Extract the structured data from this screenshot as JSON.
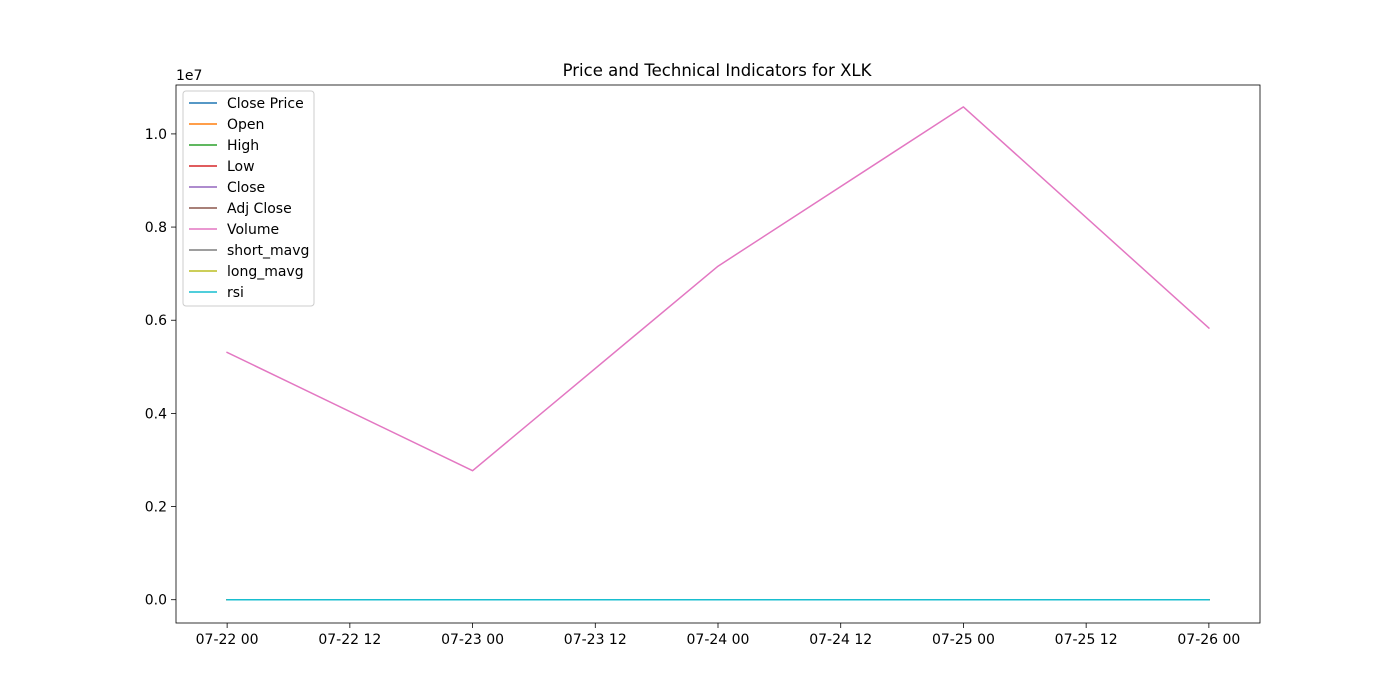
{
  "chart_data": {
    "type": "line",
    "title": "Price and Technical Indicators for XLK",
    "xlabel": "",
    "ylabel": "",
    "y_offset_label": "1e7",
    "x_ticks": [
      "07-22 00",
      "07-22 12",
      "07-23 00",
      "07-23 12",
      "07-24 00",
      "07-24 12",
      "07-25 00",
      "07-25 12",
      "07-26 00"
    ],
    "y_ticks": [
      "0.0",
      "0.2",
      "0.4",
      "0.6",
      "0.8",
      "1.0"
    ],
    "xlim": [
      "2024-07-21 19:00",
      "2024-07-26 05:00"
    ],
    "ylim": [
      -0.05,
      1.105
    ],
    "x": [
      "2024-07-22",
      "2024-07-23",
      "2024-07-24",
      "2024-07-25",
      "2024-07-26"
    ],
    "legend_position": "top-left",
    "grid": false,
    "series": [
      {
        "name": "Close Price",
        "color": "#1f77b4",
        "values": [
          0.0,
          0.0,
          0.0,
          0.0,
          0.0
        ]
      },
      {
        "name": "Open",
        "color": "#ff7f0e",
        "values": [
          0.0,
          0.0,
          0.0,
          0.0,
          0.0
        ]
      },
      {
        "name": "High",
        "color": "#2ca02c",
        "values": [
          0.0,
          0.0,
          0.0,
          0.0,
          0.0
        ]
      },
      {
        "name": "Low",
        "color": "#d62728",
        "values": [
          0.0,
          0.0,
          0.0,
          0.0,
          0.0
        ]
      },
      {
        "name": "Close",
        "color": "#9467bd",
        "values": [
          0.0,
          0.0,
          0.0,
          0.0,
          0.0
        ]
      },
      {
        "name": "Adj Close",
        "color": "#8c564b",
        "values": [
          0.0,
          0.0,
          0.0,
          0.0,
          0.0
        ]
      },
      {
        "name": "Volume",
        "color": "#e377c2",
        "values": [
          0.531,
          0.277,
          0.716,
          1.058,
          0.583
        ]
      },
      {
        "name": "short_mavg",
        "color": "#7f7f7f",
        "values": [
          0.0,
          0.0,
          0.0,
          0.0,
          0.0
        ]
      },
      {
        "name": "long_mavg",
        "color": "#bcbd22",
        "values": [
          0.0,
          0.0,
          0.0,
          0.0,
          0.0
        ]
      },
      {
        "name": "rsi",
        "color": "#17becf",
        "values": [
          0.0,
          0.0,
          0.0,
          0.0,
          0.0
        ]
      }
    ]
  }
}
